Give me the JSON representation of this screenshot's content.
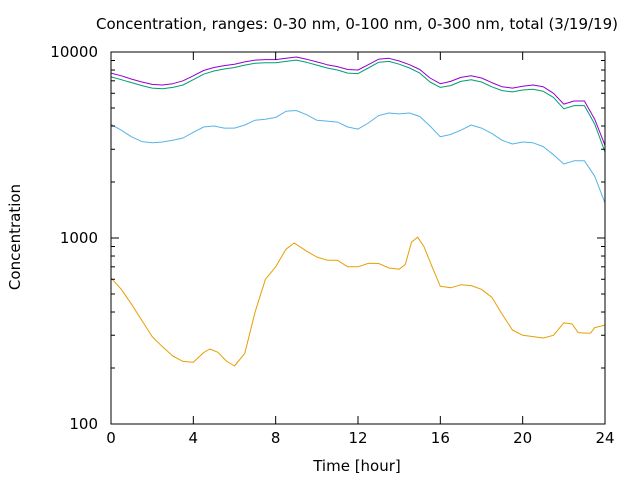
{
  "chart_data": {
    "type": "line",
    "title": "Concentration, ranges: 0-30 nm, 0-100 nm, 0-300 nm, total (3/19/19)",
    "xlabel": "Time [hour]",
    "ylabel": "Concentration",
    "xlim": [
      0,
      24
    ],
    "ylim": [
      100,
      10000
    ],
    "yscale": "log",
    "grid": false,
    "legend": "none",
    "x_ticks": [
      {
        "value": 0,
        "label": "0"
      },
      {
        "value": 4,
        "label": "4"
      },
      {
        "value": 8,
        "label": "8"
      },
      {
        "value": 12,
        "label": "12"
      },
      {
        "value": 16,
        "label": "16"
      },
      {
        "value": 20,
        "label": "20"
      },
      {
        "value": 24,
        "label": "24"
      }
    ],
    "y_ticks": [
      {
        "value": 100,
        "label": "100"
      },
      {
        "value": 1000,
        "label": "1000"
      },
      {
        "value": 10000,
        "label": "10000"
      }
    ],
    "series": [
      {
        "color": "#e69f00",
        "points": [
          [
            0,
            610
          ],
          [
            0.5,
            530
          ],
          [
            1,
            440
          ],
          [
            1.5,
            360
          ],
          [
            2,
            295
          ],
          [
            2.5,
            260
          ],
          [
            3,
            232
          ],
          [
            3.5,
            217
          ],
          [
            4,
            215
          ],
          [
            4.5,
            242
          ],
          [
            4.8,
            253
          ],
          [
            5.2,
            243
          ],
          [
            5.6,
            218
          ],
          [
            6,
            205
          ],
          [
            6.5,
            240
          ],
          [
            7,
            400
          ],
          [
            7.5,
            600
          ],
          [
            8,
            700
          ],
          [
            8.5,
            870
          ],
          [
            8.9,
            940
          ],
          [
            9.5,
            850
          ],
          [
            10,
            790
          ],
          [
            10.5,
            760
          ],
          [
            11,
            760
          ],
          [
            11.5,
            700
          ],
          [
            12,
            700
          ],
          [
            12.5,
            730
          ],
          [
            13,
            730
          ],
          [
            13.5,
            690
          ],
          [
            14,
            680
          ],
          [
            14.3,
            720
          ],
          [
            14.6,
            950
          ],
          [
            14.9,
            1010
          ],
          [
            15.2,
            900
          ],
          [
            15.6,
            700
          ],
          [
            16,
            550
          ],
          [
            16.5,
            540
          ],
          [
            17,
            560
          ],
          [
            17.5,
            555
          ],
          [
            18,
            530
          ],
          [
            18.5,
            480
          ],
          [
            19,
            390
          ],
          [
            19.5,
            320
          ],
          [
            20,
            300
          ],
          [
            20.5,
            295
          ],
          [
            21,
            290
          ],
          [
            21.5,
            300
          ],
          [
            22,
            350
          ],
          [
            22.4,
            345
          ],
          [
            22.7,
            310
          ],
          [
            23,
            308
          ],
          [
            23.3,
            308
          ],
          [
            23.5,
            330
          ],
          [
            24,
            340
          ]
        ]
      },
      {
        "color": "#56b4e9",
        "points": [
          [
            0,
            4080
          ],
          [
            0.5,
            3800
          ],
          [
            1,
            3500
          ],
          [
            1.5,
            3300
          ],
          [
            2,
            3250
          ],
          [
            2.5,
            3280
          ],
          [
            3,
            3350
          ],
          [
            3.5,
            3450
          ],
          [
            4,
            3700
          ],
          [
            4.5,
            3950
          ],
          [
            5,
            4000
          ],
          [
            5.5,
            3900
          ],
          [
            6,
            3900
          ],
          [
            6.5,
            4050
          ],
          [
            7,
            4300
          ],
          [
            7.5,
            4350
          ],
          [
            8,
            4450
          ],
          [
            8.5,
            4800
          ],
          [
            9,
            4850
          ],
          [
            9.5,
            4600
          ],
          [
            10,
            4300
          ],
          [
            10.5,
            4250
          ],
          [
            11,
            4200
          ],
          [
            11.5,
            3950
          ],
          [
            12,
            3850
          ],
          [
            12.5,
            4150
          ],
          [
            13,
            4550
          ],
          [
            13.5,
            4700
          ],
          [
            14,
            4650
          ],
          [
            14.5,
            4700
          ],
          [
            15,
            4500
          ],
          [
            15.5,
            4000
          ],
          [
            16,
            3500
          ],
          [
            16.5,
            3600
          ],
          [
            17,
            3800
          ],
          [
            17.5,
            4050
          ],
          [
            18,
            3900
          ],
          [
            18.5,
            3650
          ],
          [
            19,
            3350
          ],
          [
            19.5,
            3200
          ],
          [
            20,
            3280
          ],
          [
            20.5,
            3250
          ],
          [
            21,
            3100
          ],
          [
            21.5,
            2800
          ],
          [
            22,
            2500
          ],
          [
            22.5,
            2600
          ],
          [
            23,
            2600
          ],
          [
            23.5,
            2150
          ],
          [
            24,
            1540
          ]
        ]
      },
      {
        "color": "#009e73",
        "points": [
          [
            0,
            7350
          ],
          [
            0.5,
            7100
          ],
          [
            1,
            6850
          ],
          [
            1.5,
            6600
          ],
          [
            2,
            6400
          ],
          [
            2.5,
            6350
          ],
          [
            3,
            6450
          ],
          [
            3.5,
            6650
          ],
          [
            4,
            7100
          ],
          [
            4.5,
            7600
          ],
          [
            5,
            7900
          ],
          [
            5.5,
            8100
          ],
          [
            6,
            8250
          ],
          [
            6.5,
            8500
          ],
          [
            7,
            8700
          ],
          [
            7.5,
            8750
          ],
          [
            8,
            8750
          ],
          [
            8.5,
            8900
          ],
          [
            9,
            9050
          ],
          [
            9.5,
            8800
          ],
          [
            10,
            8500
          ],
          [
            10.5,
            8200
          ],
          [
            11,
            8000
          ],
          [
            11.5,
            7700
          ],
          [
            12,
            7650
          ],
          [
            12.5,
            8200
          ],
          [
            13,
            8800
          ],
          [
            13.5,
            8900
          ],
          [
            14,
            8600
          ],
          [
            14.5,
            8200
          ],
          [
            15,
            7700
          ],
          [
            15.5,
            6900
          ],
          [
            16,
            6450
          ],
          [
            16.5,
            6600
          ],
          [
            17,
            6950
          ],
          [
            17.5,
            7100
          ],
          [
            18,
            6900
          ],
          [
            18.5,
            6500
          ],
          [
            19,
            6200
          ],
          [
            19.5,
            6100
          ],
          [
            20,
            6250
          ],
          [
            20.5,
            6300
          ],
          [
            21,
            6150
          ],
          [
            21.5,
            5700
          ],
          [
            22,
            4950
          ],
          [
            22.5,
            5150
          ],
          [
            23,
            5150
          ],
          [
            23.5,
            4100
          ],
          [
            24,
            2900
          ]
        ]
      },
      {
        "color": "#9400d3",
        "points": [
          [
            0,
            7700
          ],
          [
            0.5,
            7450
          ],
          [
            1,
            7150
          ],
          [
            1.5,
            6900
          ],
          [
            2,
            6700
          ],
          [
            2.5,
            6650
          ],
          [
            3,
            6750
          ],
          [
            3.5,
            7000
          ],
          [
            4,
            7450
          ],
          [
            4.5,
            7950
          ],
          [
            5,
            8250
          ],
          [
            5.5,
            8450
          ],
          [
            6,
            8600
          ],
          [
            6.5,
            8850
          ],
          [
            7,
            9050
          ],
          [
            7.5,
            9100
          ],
          [
            8,
            9100
          ],
          [
            8.5,
            9250
          ],
          [
            9,
            9400
          ],
          [
            9.5,
            9150
          ],
          [
            10,
            8850
          ],
          [
            10.5,
            8550
          ],
          [
            11,
            8350
          ],
          [
            11.5,
            8050
          ],
          [
            12,
            8000
          ],
          [
            12.5,
            8550
          ],
          [
            13,
            9150
          ],
          [
            13.5,
            9250
          ],
          [
            14,
            8950
          ],
          [
            14.5,
            8550
          ],
          [
            15,
            8050
          ],
          [
            15.5,
            7250
          ],
          [
            16,
            6750
          ],
          [
            16.5,
            6950
          ],
          [
            17,
            7300
          ],
          [
            17.5,
            7450
          ],
          [
            18,
            7250
          ],
          [
            18.5,
            6850
          ],
          [
            19,
            6500
          ],
          [
            19.5,
            6400
          ],
          [
            20,
            6550
          ],
          [
            20.5,
            6650
          ],
          [
            21,
            6500
          ],
          [
            21.5,
            6000
          ],
          [
            22,
            5250
          ],
          [
            22.5,
            5450
          ],
          [
            23,
            5450
          ],
          [
            23.5,
            4350
          ],
          [
            24,
            3150
          ]
        ]
      }
    ]
  }
}
